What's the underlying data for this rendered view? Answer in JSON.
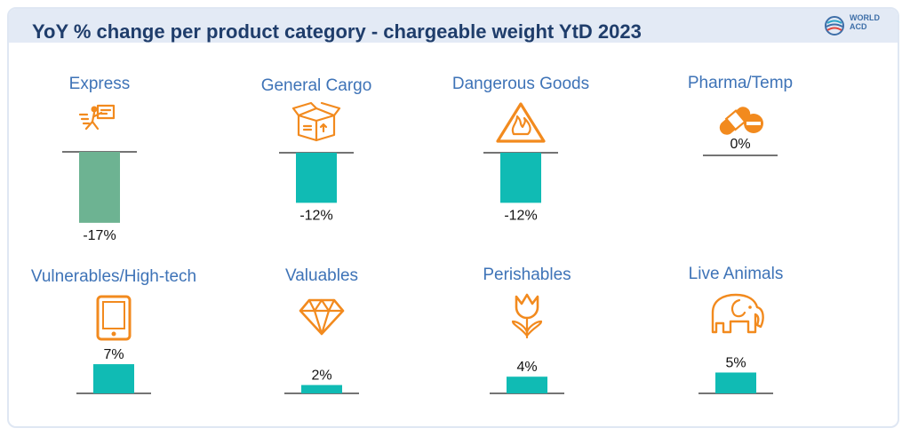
{
  "header": {
    "title": "YoY % change per product category - chargeable weight YtD 2023",
    "logo_line1": "WORLD",
    "logo_line2": "ACD"
  },
  "colors": {
    "teal": "#10bbb4",
    "green": "#6db392",
    "icon_orange": "#f28a1e",
    "label_blue": "#3e73b7"
  },
  "chart_data": {
    "type": "bar",
    "title": "YoY % change per product category - chargeable weight YtD 2023",
    "unit": "%",
    "categories": [
      "Express",
      "General Cargo",
      "Dangerous Goods",
      "Pharma/Temp",
      "Vulnerables/High-tech",
      "Valuables",
      "Perishables",
      "Live Animals"
    ],
    "values": [
      -17,
      -12,
      -12,
      0,
      7,
      2,
      4,
      5
    ],
    "value_labels": [
      "-17%",
      "-12%",
      "-12%",
      "0%",
      "7%",
      "2%",
      "4%",
      "5%"
    ],
    "bar_colors": [
      "#6db392",
      "#10bbb4",
      "#10bbb4",
      "#10bbb4",
      "#10bbb4",
      "#10bbb4",
      "#10bbb4",
      "#10bbb4"
    ],
    "icons": [
      "express-delivery-icon",
      "package-box-icon",
      "flammable-warning-icon",
      "pill-capsule-icon",
      "smartphone-icon",
      "diamond-icon",
      "tulip-flower-icon",
      "elephant-icon"
    ]
  }
}
